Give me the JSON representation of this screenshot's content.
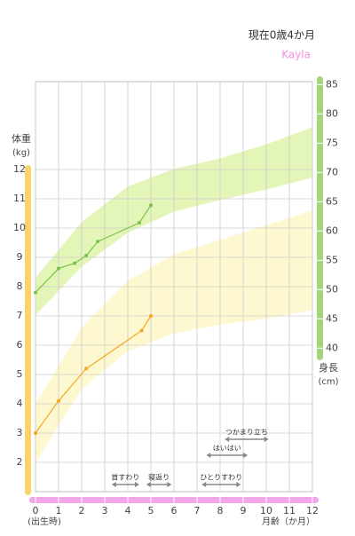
{
  "header": {
    "age": "現在0歳4か月",
    "name": "Kayla"
  },
  "chart_data": {
    "type": "line",
    "y_label": "体重",
    "y_unit": "(kg)",
    "y2_label": "身長",
    "y2_unit": "(cm)",
    "x_label": "月齢（か月）",
    "x_origin_note": "(出生時)",
    "xlim": [
      0,
      12
    ],
    "xticks": [
      0,
      1,
      2,
      3,
      4,
      5,
      6,
      7,
      8,
      9,
      10,
      11,
      12
    ],
    "ylim": [
      1,
      15
    ],
    "yticks": [
      2,
      3,
      4,
      5,
      6,
      7,
      8,
      9,
      10,
      11,
      12
    ],
    "y2lim": [
      15.5,
      85.5
    ],
    "y2ticks": [
      40,
      45,
      50,
      55,
      60,
      65,
      70,
      75,
      80,
      85
    ],
    "grid": true,
    "bands": [
      {
        "axis": "y2",
        "color": "#e4f5b8",
        "x": [
          0,
          2,
          4,
          6,
          8,
          10,
          12
        ],
        "upper": [
          52.0,
          61.5,
          67.6,
          70.6,
          72.4,
          74.8,
          77.7
        ],
        "lower": [
          45.6,
          53.9,
          59.7,
          63.3,
          65.3,
          67.1,
          69.1
        ]
      },
      {
        "axis": "y",
        "color": "#fdf8cf",
        "x": [
          0,
          2,
          4,
          6,
          8,
          10,
          12
        ],
        "upper": [
          4.0,
          6.6,
          8.2,
          9.1,
          9.6,
          10.1,
          10.6
        ],
        "lower": [
          2.0,
          4.5,
          5.8,
          6.4,
          6.7,
          6.9,
          7.2
        ]
      }
    ],
    "series": [
      {
        "axis": "y2",
        "color": "#7cc24a",
        "x": [
          0,
          1,
          1.7,
          2.2,
          2.7,
          4.5,
          5
        ],
        "values": [
          49.5,
          53.6,
          54.5,
          55.8,
          58.2,
          61.4,
          64.4
        ]
      },
      {
        "axis": "y",
        "color": "#f5a623",
        "x": [
          0,
          1,
          2.2,
          4.6,
          5
        ],
        "values": [
          3.0,
          4.1,
          5.2,
          6.5,
          7.0
        ]
      }
    ],
    "milestones": [
      {
        "label": "首すわり",
        "start": 3.3,
        "end": 4.5,
        "row": 0
      },
      {
        "label": "寝返り",
        "start": 4.8,
        "end": 5.9,
        "row": 0
      },
      {
        "label": "ひとりすわり",
        "start": 7.2,
        "end": 8.9,
        "row": 0
      },
      {
        "label": "はいはい",
        "start": 7.4,
        "end": 9.2,
        "row": 1
      },
      {
        "label": "つかまり立ち",
        "start": 8.2,
        "end": 10.1,
        "row": 2
      }
    ]
  }
}
